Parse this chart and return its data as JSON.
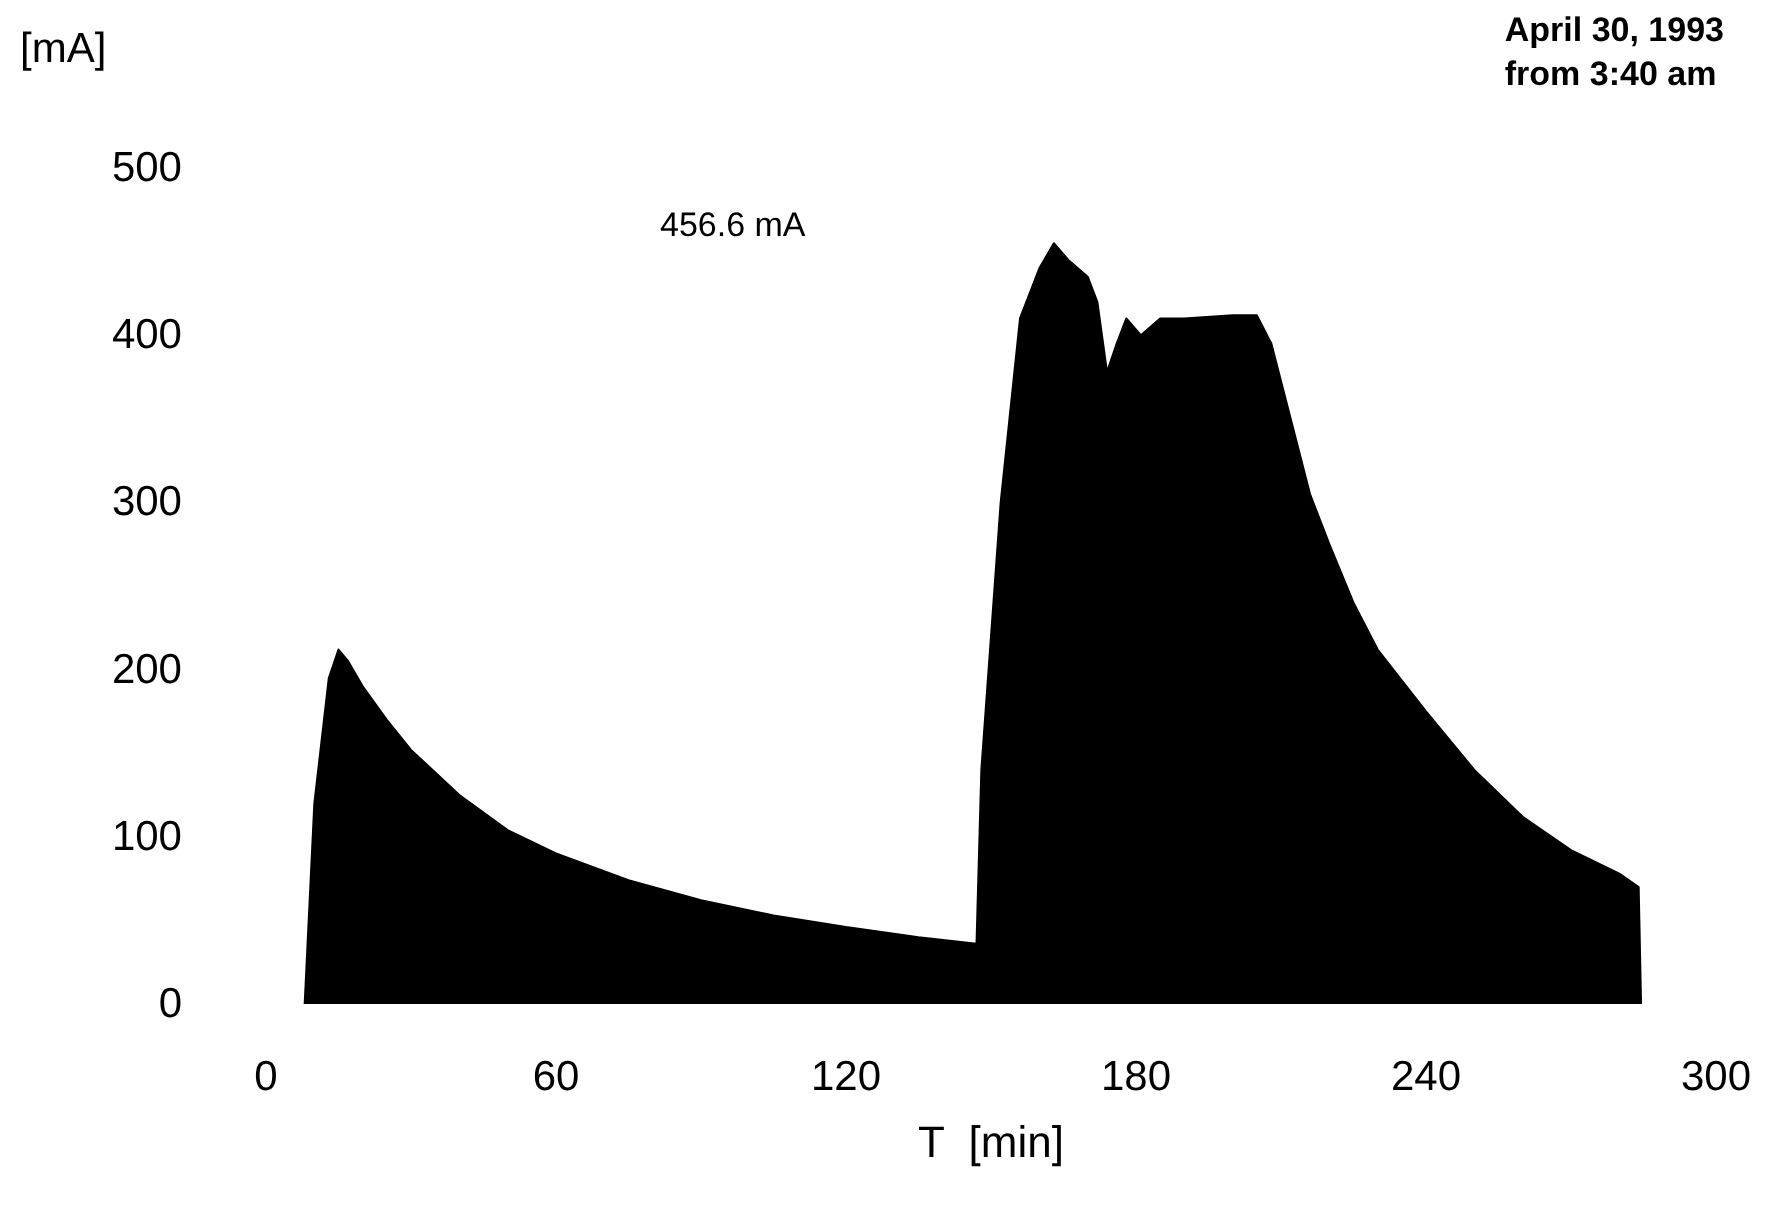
{
  "chart_data": {
    "type": "area",
    "xlabel": "T  [min]",
    "ylabel": "[mA]",
    "annotations": [
      "April 30, 1993\nfrom 3:40 am",
      "456.6 mA"
    ],
    "x": [
      8,
      10,
      13,
      15,
      17,
      20,
      25,
      30,
      40,
      50,
      60,
      75,
      90,
      105,
      120,
      135,
      147,
      148,
      152,
      156,
      160,
      163,
      166,
      170,
      172,
      174,
      176,
      178,
      181,
      185,
      190,
      200,
      205,
      208,
      212,
      216,
      220,
      225,
      230,
      240,
      250,
      260,
      270,
      280,
      284,
      284.5
    ],
    "series": [
      {
        "color": "#000000",
        "values": [
          0,
          120,
          195,
          212,
          205,
          190,
          170,
          152,
          125,
          104,
          90,
          74,
          62,
          53,
          46,
          40,
          36,
          140,
          300,
          410,
          440,
          455,
          445,
          435,
          420,
          378,
          395,
          410,
          400,
          410,
          410,
          412,
          412,
          395,
          350,
          305,
          275,
          240,
          212,
          175,
          140,
          112,
          92,
          78,
          70,
          0
        ]
      }
    ],
    "xlim": [
      0,
      300
    ],
    "xticks": [
      0,
      60,
      120,
      180,
      240,
      300
    ],
    "ylim": [
      0,
      500
    ],
    "yticks": [
      0,
      100,
      200,
      300,
      400,
      500
    ],
    "grid": false,
    "marker": "none"
  }
}
